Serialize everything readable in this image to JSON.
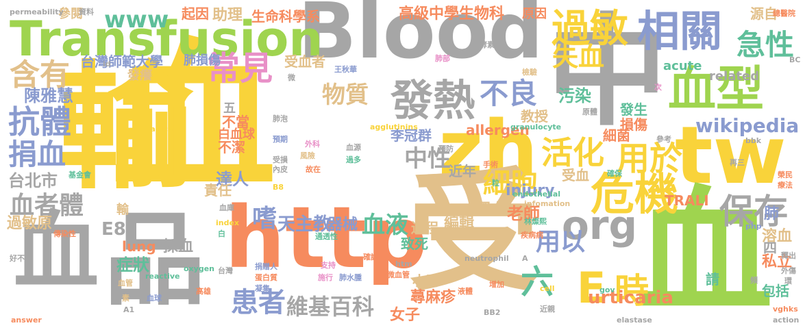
{
  "palette": {
    "yellow": "#f9d33a",
    "green": "#9fd44f",
    "grey": "#a6a6a6",
    "orange": "#f68b5e",
    "tan": "#e2c08a",
    "blue": "#8a9bcf",
    "teal": "#5fbf9a",
    "pink": "#e890c7"
  },
  "words": [
    {
      "text": "血",
      "color": "yellow"
    },
    {
      "text": "輸",
      "color": "yellow"
    },
    {
      "text": "Blood",
      "color": "grey"
    },
    {
      "text": "Transfusion",
      "color": "green"
    },
    {
      "text": "中",
      "color": "grey"
    },
    {
      "text": "zh",
      "color": "yellow"
    },
    {
      "text": "tw",
      "color": "yellow"
    },
    {
      "text": "http",
      "color": "orange"
    },
    {
      "text": "受",
      "color": "tan"
    },
    {
      "text": "血",
      "color": "green"
    },
    {
      "text": "血",
      "color": "grey"
    },
    {
      "text": "品",
      "color": "grey"
    },
    {
      "text": "相關",
      "color": "blue"
    },
    {
      "text": "過敏",
      "color": "yellow"
    },
    {
      "text": "血型",
      "color": "green"
    },
    {
      "text": "常見",
      "color": "pink"
    },
    {
      "text": "發熱",
      "color": "grey"
    },
    {
      "text": "不良",
      "color": "blue"
    },
    {
      "text": "急性",
      "color": "teal"
    },
    {
      "text": "危機",
      "color": "yellow"
    },
    {
      "text": "org",
      "color": "grey"
    },
    {
      "text": "保存",
      "color": "grey"
    },
    {
      "text": "時",
      "color": "yellow"
    },
    {
      "text": "E",
      "color": "yellow"
    },
    {
      "text": "urticaria",
      "color": "orange"
    },
    {
      "text": "活化",
      "color": "yellow"
    },
    {
      "text": "用於",
      "color": "yellow"
    },
    {
      "text": "細胞",
      "color": "yellow"
    },
    {
      "text": "中性",
      "color": "grey"
    },
    {
      "text": "物質",
      "color": "tan"
    },
    {
      "text": "失血",
      "color": "yellow"
    },
    {
      "text": "含有",
      "color": "tan"
    },
    {
      "text": "抗體",
      "color": "blue"
    },
    {
      "text": "捐血",
      "color": "blue"
    },
    {
      "text": "血者體",
      "color": "grey"
    },
    {
      "text": "www",
      "color": "teal"
    },
    {
      "text": "血液",
      "color": "teal"
    },
    {
      "text": "嗜",
      "color": "blue"
    },
    {
      "text": "患者",
      "color": "blue"
    },
    {
      "text": "維基百科",
      "color": "grey"
    },
    {
      "text": "六",
      "color": "teal"
    },
    {
      "text": "用以",
      "color": "blue"
    },
    {
      "text": "wikipedia",
      "color": "blue"
    },
    {
      "text": "高級中學生物科",
      "color": "orange"
    },
    {
      "text": "生命科學系",
      "color": "orange"
    },
    {
      "text": "助理",
      "color": "tan"
    },
    {
      "text": "起因",
      "color": "orange"
    },
    {
      "text": "參閱",
      "color": "tan"
    },
    {
      "text": "台灣師範大學",
      "color": "blue"
    },
    {
      "text": "肺損傷",
      "color": "blue"
    },
    {
      "text": "受血者",
      "color": "tan"
    },
    {
      "text": "陳雅慧",
      "color": "blue"
    },
    {
      "text": "天主教",
      "color": "blue"
    },
    {
      "text": "器械",
      "color": "blue"
    },
    {
      "text": "達人",
      "color": "blue"
    },
    {
      "text": "台北市",
      "color": "grey"
    },
    {
      "text": "E8",
      "color": "grey"
    },
    {
      "text": "症狀",
      "color": "teal"
    },
    {
      "text": "採血",
      "color": "grey"
    },
    {
      "text": "過敏原",
      "color": "tan"
    },
    {
      "text": "lung",
      "color": "orange"
    },
    {
      "text": "TRALI",
      "color": "orange"
    },
    {
      "text": "injury",
      "color": "blue"
    },
    {
      "text": "allergen",
      "color": "orange"
    },
    {
      "text": "國立",
      "color": "tan"
    },
    {
      "text": "編輯",
      "color": "tan"
    },
    {
      "text": "老師",
      "color": "orange"
    },
    {
      "text": "過程",
      "color": "tan"
    },
    {
      "text": "致死",
      "color": "teal"
    },
    {
      "text": "蕁麻疹",
      "color": "orange"
    },
    {
      "text": "小時",
      "color": "tan"
    },
    {
      "text": "女子",
      "color": "orange"
    },
    {
      "text": "李冠群",
      "color": "blue"
    },
    {
      "text": "近年",
      "color": "grey"
    },
    {
      "text": "細菌",
      "color": "orange"
    },
    {
      "text": "教授",
      "color": "tan"
    },
    {
      "text": "污染",
      "color": "teal"
    },
    {
      "text": "發生",
      "color": "teal"
    },
    {
      "text": "損傷",
      "color": "orange"
    },
    {
      "text": "私立",
      "color": "orange"
    },
    {
      "text": "溶血",
      "color": "tan"
    },
    {
      "text": "包括",
      "color": "teal"
    },
    {
      "text": "related",
      "color": "grey"
    },
    {
      "text": "acute",
      "color": "teal"
    },
    {
      "text": "源自",
      "color": "tan"
    },
    {
      "text": "原因",
      "color": "orange"
    },
    {
      "text": "責任",
      "color": "tan"
    },
    {
      "text": "不潔",
      "color": "orange"
    },
    {
      "text": "不當",
      "color": "orange"
    },
    {
      "text": "白血球",
      "color": "orange"
    },
    {
      "text": "發癢",
      "color": "tan"
    },
    {
      "text": "五",
      "color": "grey"
    },
    {
      "text": "輸",
      "color": "tan"
    },
    {
      "text": "受血",
      "color": "tan"
    },
    {
      "text": "肺",
      "color": "blue"
    },
    {
      "text": "四",
      "color": "grey"
    },
    {
      "text": "請",
      "color": "teal"
    },
    {
      "text": "permeability",
      "color": "grey"
    },
    {
      "text": "資料",
      "color": "grey"
    },
    {
      "text": "id",
      "color": "grey"
    },
    {
      "text": "radicals",
      "color": "yellow"
    },
    {
      "text": "agglutinins",
      "color": "yellow"
    },
    {
      "text": "granulocyte",
      "color": "teal"
    },
    {
      "text": "endothelial",
      "color": "teal"
    },
    {
      "text": "neutrophil",
      "color": "grey"
    },
    {
      "text": "oxygen",
      "color": "teal"
    },
    {
      "text": "reactive",
      "color": "teal"
    },
    {
      "text": "infomation",
      "color": "tan"
    },
    {
      "text": "elastase",
      "color": "grey"
    },
    {
      "text": "action",
      "color": "grey"
    },
    {
      "text": "answer",
      "color": "orange"
    },
    {
      "text": "index",
      "color": "yellow"
    },
    {
      "text": "cell",
      "color": "yellow"
    },
    {
      "text": "gov",
      "color": "teal"
    },
    {
      "text": "htm",
      "color": "grey"
    },
    {
      "text": "php",
      "color": "blue"
    },
    {
      "text": "vghks",
      "color": "orange"
    },
    {
      "text": "bbk",
      "color": "grey"
    },
    {
      "text": "BC",
      "color": "grey"
    },
    {
      "text": "A1",
      "color": "grey"
    },
    {
      "text": "A",
      "color": "grey"
    },
    {
      "text": "B8",
      "color": "yellow"
    },
    {
      "text": "BB2",
      "color": "grey"
    },
    {
      "text": "總醫院",
      "color": "orange"
    },
    {
      "text": "王秋華",
      "color": "blue"
    },
    {
      "text": "肺部",
      "color": "pink"
    },
    {
      "text": "酵素",
      "color": "grey"
    },
    {
      "text": "檢驗",
      "color": "tan"
    },
    {
      "text": "次",
      "color": "pink"
    },
    {
      "text": "原體",
      "color": "grey"
    },
    {
      "text": "參考",
      "color": "grey"
    },
    {
      "text": "再三",
      "color": "grey"
    },
    {
      "text": "榮民",
      "color": "orange"
    },
    {
      "text": "療法",
      "color": "orange"
    },
    {
      "text": "確保",
      "color": "teal"
    },
    {
      "text": "手術",
      "color": "orange"
    },
    {
      "text": "粒",
      "color": "teal"
    },
    {
      "text": "林燦熙",
      "color": "teal"
    },
    {
      "text": "疾病病",
      "color": "orange"
    },
    {
      "text": "肺泡",
      "color": "grey"
    },
    {
      "text": "血源",
      "color": "grey"
    },
    {
      "text": "外科",
      "color": "pink"
    },
    {
      "text": "預期",
      "color": "blue"
    },
    {
      "text": "預防",
      "color": "grey"
    },
    {
      "text": "風險",
      "color": "tan"
    },
    {
      "text": "受損",
      "color": "grey"
    },
    {
      "text": "內皮",
      "color": "grey"
    },
    {
      "text": "故在",
      "color": "orange"
    },
    {
      "text": "過多",
      "color": "teal"
    },
    {
      "text": "基金會",
      "color": "teal"
    },
    {
      "text": "血庫",
      "color": "grey"
    },
    {
      "text": "傳染性",
      "color": "orange"
    },
    {
      "text": "好不",
      "color": "grey"
    },
    {
      "text": "白",
      "color": "teal"
    },
    {
      "text": "通透性",
      "color": "teal"
    },
    {
      "text": "確認",
      "color": "orange"
    },
    {
      "text": "微血管",
      "color": "orange"
    },
    {
      "text": "捐贈人",
      "color": "blue"
    },
    {
      "text": "台灣",
      "color": "grey"
    },
    {
      "text": "支持",
      "color": "pink"
    },
    {
      "text": "施行",
      "color": "pink"
    },
    {
      "text": "肺水腫",
      "color": "blue"
    },
    {
      "text": "蛋白質",
      "color": "orange"
    },
    {
      "text": "凝集",
      "color": "blue"
    },
    {
      "text": "血管",
      "color": "tan"
    },
    {
      "text": "素",
      "color": "tan"
    },
    {
      "text": "高雄",
      "color": "orange"
    },
    {
      "text": "增加",
      "color": "orange"
    },
    {
      "text": "血球",
      "color": "blue"
    },
    {
      "text": "近親",
      "color": "grey"
    },
    {
      "text": "頻",
      "color": "grey"
    },
    {
      "text": "釋出",
      "color": "grey"
    },
    {
      "text": "外傷",
      "color": "grey"
    },
    {
      "text": "環",
      "color": "grey"
    },
    {
      "text": "微",
      "color": "grey"
    },
    {
      "text": "液體",
      "color": "orange"
    }
  ]
}
